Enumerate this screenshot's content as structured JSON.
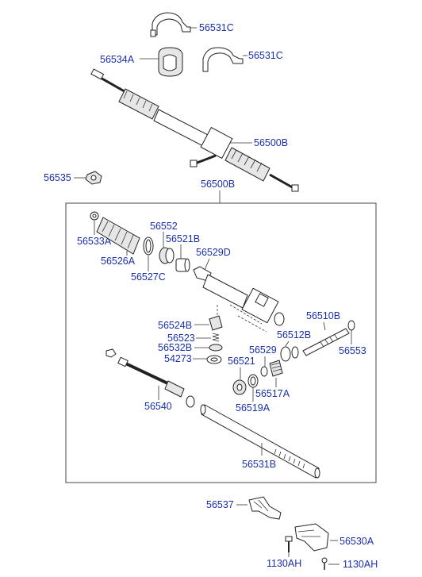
{
  "diagram": {
    "labels": [
      {
        "id": "clamp_top",
        "text": "56531C"
      },
      {
        "id": "bush",
        "text": "56534A"
      },
      {
        "id": "clamp_mid",
        "text": "56531C"
      },
      {
        "id": "rack_assy_top",
        "text": "56500B"
      },
      {
        "id": "nut",
        "text": "56535"
      },
      {
        "id": "rack_assy_box",
        "text": "56500B"
      },
      {
        "id": "l_56533A",
        "text": "56533A"
      },
      {
        "id": "l_56526A",
        "text": "56526A"
      },
      {
        "id": "l_56527C",
        "text": "56527C"
      },
      {
        "id": "l_56552",
        "text": "56552"
      },
      {
        "id": "l_56521B",
        "text": "56521B"
      },
      {
        "id": "l_56529D",
        "text": "56529D"
      },
      {
        "id": "l_56524B",
        "text": "56524B"
      },
      {
        "id": "l_56523",
        "text": "56523"
      },
      {
        "id": "l_56532B",
        "text": "56532B"
      },
      {
        "id": "l_54273",
        "text": "54273"
      },
      {
        "id": "l_56510B",
        "text": "56510B"
      },
      {
        "id": "l_56512B",
        "text": "56512B"
      },
      {
        "id": "l_56529",
        "text": "56529"
      },
      {
        "id": "l_56521",
        "text": "56521"
      },
      {
        "id": "l_56553",
        "text": "56553"
      },
      {
        "id": "l_56517A",
        "text": "56517A"
      },
      {
        "id": "l_56519A",
        "text": "56519A"
      },
      {
        "id": "l_56540",
        "text": "56540"
      },
      {
        "id": "l_56531B",
        "text": "56531B"
      },
      {
        "id": "l_56537",
        "text": "56537"
      },
      {
        "id": "l_56530A",
        "text": "56530A"
      },
      {
        "id": "l_1130AH_a",
        "text": "1130AH"
      },
      {
        "id": "l_1130AH_b",
        "text": "1130AH"
      }
    ]
  }
}
